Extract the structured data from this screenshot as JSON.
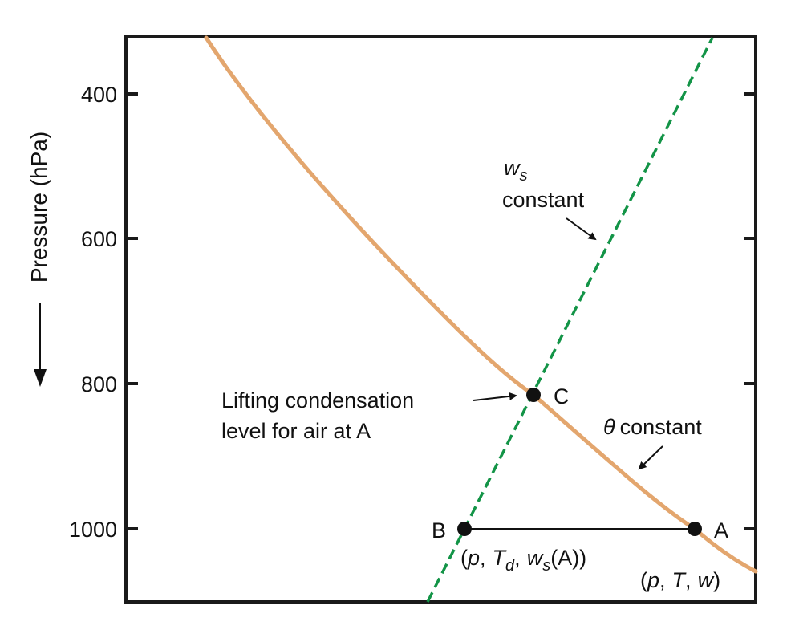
{
  "colors": {
    "theta_curve": "#E3A66E",
    "ws_line": "#139447",
    "axis": "#1a1a1a",
    "point": "#111111"
  },
  "axis": {
    "ylabel": "Pressure (hPa)",
    "yticks": [
      "400",
      "600",
      "800",
      "1000"
    ]
  },
  "labels": {
    "ws_symbol": "w",
    "ws_subscript": "s",
    "ws_constant": "constant",
    "theta_symbol": "θ",
    "theta_constant": "constant",
    "lcl_line1": "Lifting condensation",
    "lcl_line2": "level for air at A",
    "point_A": "A",
    "point_B": "B",
    "point_C": "C",
    "B_coord_open": "(",
    "B_coord_p": "p",
    "B_coord_T": "T",
    "B_coord_Tsub": "d",
    "B_coord_w": "w",
    "B_coord_wsub": "s",
    "B_coord_tail": "(A))",
    "A_coord_open": "(",
    "A_coord_p": "p",
    "A_coord_T": "T",
    "A_coord_w": "w",
    "A_coord_close": ")",
    "comma": ","
  }
}
